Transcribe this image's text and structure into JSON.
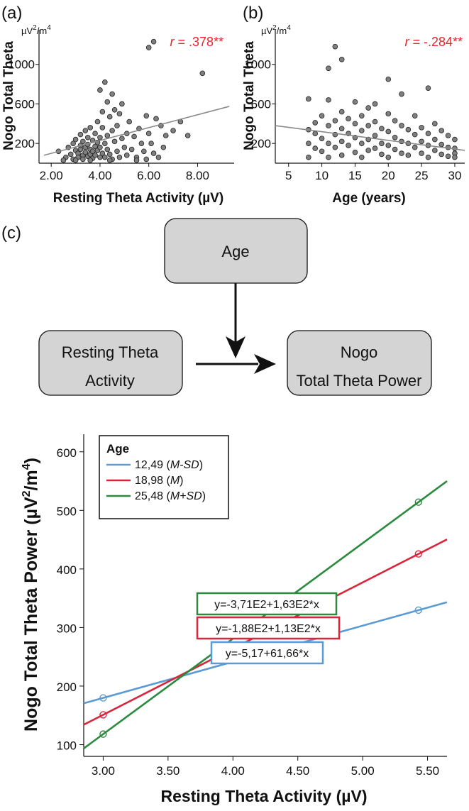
{
  "panels": {
    "a": "(a)",
    "b": "(b)",
    "c": "(c)"
  },
  "colors": {
    "m_minus_sd": "#5b9bd5",
    "m": "#d9263d",
    "m_plus_sd": "#2a8a3e",
    "r_text": "#e8262b",
    "dot": "#7f7f7f",
    "node_fill": "#d4d4d4"
  },
  "diagram": {
    "age": "Age",
    "resting_line1": "Resting Theta",
    "resting_line2": "Activity",
    "nogo_line1": "Nogo",
    "nogo_line2": "Total Theta Power"
  },
  "chart_data": [
    {
      "id": "a",
      "type": "scatter",
      "title": "",
      "xlabel": "Resting Theta Activity (µV)",
      "ylabel": "Nogo Total Theta",
      "y_unit_base": "µV",
      "y_unit_sup1": "2",
      "y_unit_mid": "/m",
      "y_unit_sup2": "4",
      "annotation_prefix": "r",
      "annotation_value": " = .378**",
      "xlim": [
        1.5,
        9.5
      ],
      "ylim": [
        0,
        1350
      ],
      "xticks": [
        2,
        4,
        6,
        8
      ],
      "xtick_labels": [
        "2.00",
        "4.00",
        "6.00",
        "8.00"
      ],
      "yticks": [
        200,
        600,
        1000
      ],
      "fit_line": {
        "x": [
          1.7,
          9.3
        ],
        "y": [
          80,
          575
        ]
      },
      "points": [
        [
          2.3,
          120
        ],
        [
          2.6,
          60
        ],
        [
          2.7,
          160
        ],
        [
          2.8,
          90
        ],
        [
          2.9,
          200
        ],
        [
          2.9,
          40
        ],
        [
          3.0,
          130
        ],
        [
          3.0,
          240
        ],
        [
          3.1,
          100
        ],
        [
          3.1,
          60
        ],
        [
          3.2,
          180
        ],
        [
          3.2,
          290
        ],
        [
          3.2,
          140
        ],
        [
          3.3,
          80
        ],
        [
          3.3,
          220
        ],
        [
          3.3,
          40
        ],
        [
          3.4,
          160
        ],
        [
          3.4,
          330
        ],
        [
          3.4,
          110
        ],
        [
          3.5,
          260
        ],
        [
          3.5,
          70
        ],
        [
          3.5,
          190
        ],
        [
          3.6,
          140
        ],
        [
          3.6,
          360
        ],
        [
          3.6,
          90
        ],
        [
          3.7,
          230
        ],
        [
          3.7,
          120
        ],
        [
          3.7,
          50
        ],
        [
          3.8,
          300
        ],
        [
          3.8,
          170
        ],
        [
          3.8,
          80
        ],
        [
          3.9,
          420
        ],
        [
          3.9,
          210
        ],
        [
          3.9,
          130
        ],
        [
          4.0,
          740
        ],
        [
          4.0,
          60
        ],
        [
          4.0,
          260
        ],
        [
          4.0,
          160
        ],
        [
          4.1,
          520
        ],
        [
          4.1,
          100
        ],
        [
          4.1,
          360
        ],
        [
          4.2,
          820
        ],
        [
          4.2,
          200
        ],
        [
          4.2,
          60
        ],
        [
          4.3,
          620
        ],
        [
          4.3,
          280
        ],
        [
          4.3,
          140
        ],
        [
          4.4,
          470
        ],
        [
          4.4,
          90
        ],
        [
          4.5,
          700
        ],
        [
          4.5,
          330
        ],
        [
          4.5,
          40
        ],
        [
          4.6,
          540
        ],
        [
          4.6,
          220
        ],
        [
          4.7,
          380
        ],
        [
          4.7,
          120
        ],
        [
          4.8,
          500
        ],
        [
          4.8,
          60
        ],
        [
          4.9,
          250
        ],
        [
          4.9,
          600
        ],
        [
          5.0,
          160
        ],
        [
          5.1,
          300
        ],
        [
          5.1,
          80
        ],
        [
          5.2,
          420
        ],
        [
          5.3,
          140
        ],
        [
          5.4,
          270
        ],
        [
          5.5,
          60
        ],
        [
          5.6,
          350
        ],
        [
          5.7,
          200
        ],
        [
          5.8,
          120
        ],
        [
          5.9,
          480
        ],
        [
          5.9,
          40
        ],
        [
          6.0,
          300
        ],
        [
          6.0,
          1170
        ],
        [
          6.1,
          200
        ],
        [
          6.2,
          1230
        ],
        [
          6.2,
          100
        ],
        [
          6.3,
          450
        ],
        [
          6.4,
          60
        ],
        [
          6.5,
          380
        ],
        [
          6.6,
          160
        ],
        [
          6.7,
          280
        ],
        [
          7.0,
          330
        ],
        [
          7.3,
          420
        ],
        [
          7.6,
          280
        ],
        [
          8.2,
          910
        ],
        [
          2.5,
          30
        ],
        [
          3.0,
          30
        ],
        [
          3.6,
          30
        ],
        [
          4.4,
          30
        ],
        [
          5.5,
          30
        ]
      ]
    },
    {
      "id": "b",
      "type": "scatter",
      "title": "",
      "xlabel": "Age (years)",
      "ylabel": "Nogo Total Theta",
      "y_unit_base": "µV",
      "y_unit_sup1": "2",
      "y_unit_mid": "/m",
      "y_unit_sup2": "4",
      "annotation_prefix": "r",
      "annotation_value": " = -.284**",
      "xlim": [
        3,
        31.5
      ],
      "ylim": [
        0,
        1350
      ],
      "xticks": [
        5,
        10,
        15,
        20,
        25,
        30
      ],
      "xtick_labels": [
        "5",
        "10",
        "15",
        "20",
        "25",
        "30"
      ],
      "yticks": [
        200,
        600,
        1000
      ],
      "fit_line": {
        "x": [
          3,
          31.5
        ],
        "y": [
          380,
          130
        ]
      },
      "points": [
        [
          8,
          650
        ],
        [
          8,
          340
        ],
        [
          8,
          200
        ],
        [
          8,
          60
        ],
        [
          9,
          410
        ],
        [
          9,
          300
        ],
        [
          9,
          150
        ],
        [
          10,
          480
        ],
        [
          10,
          250
        ],
        [
          10,
          120
        ],
        [
          11,
          960
        ],
        [
          11,
          640
        ],
        [
          11,
          380
        ],
        [
          11,
          200
        ],
        [
          11,
          60
        ],
        [
          12,
          1180
        ],
        [
          12,
          430
        ],
        [
          12,
          290
        ],
        [
          12,
          160
        ],
        [
          13,
          1050
        ],
        [
          13,
          520
        ],
        [
          13,
          350
        ],
        [
          13,
          220
        ],
        [
          13,
          80
        ],
        [
          14,
          450
        ],
        [
          14,
          300
        ],
        [
          14,
          180
        ],
        [
          15,
          620
        ],
        [
          15,
          400
        ],
        [
          15,
          260
        ],
        [
          15,
          110
        ],
        [
          16,
          480
        ],
        [
          16,
          330
        ],
        [
          16,
          200
        ],
        [
          16,
          60
        ],
        [
          17,
          560
        ],
        [
          17,
          380
        ],
        [
          17,
          240
        ],
        [
          17,
          130
        ],
        [
          18,
          600
        ],
        [
          18,
          420
        ],
        [
          18,
          280
        ],
        [
          18,
          150
        ],
        [
          19,
          350
        ],
        [
          19,
          200
        ],
        [
          19,
          90
        ],
        [
          20,
          850
        ],
        [
          20,
          500
        ],
        [
          20,
          320
        ],
        [
          20,
          180
        ],
        [
          20,
          60
        ],
        [
          21,
          430
        ],
        [
          21,
          260
        ],
        [
          21,
          140
        ],
        [
          22,
          700
        ],
        [
          22,
          380
        ],
        [
          22,
          220
        ],
        [
          22,
          100
        ],
        [
          23,
          340
        ],
        [
          23,
          200
        ],
        [
          23,
          80
        ],
        [
          24,
          480
        ],
        [
          24,
          290
        ],
        [
          24,
          160
        ],
        [
          25,
          360
        ],
        [
          25,
          220
        ],
        [
          25,
          100
        ],
        [
          26,
          760
        ],
        [
          26,
          300
        ],
        [
          26,
          180
        ],
        [
          26,
          60
        ],
        [
          27,
          400
        ],
        [
          27,
          240
        ],
        [
          27,
          130
        ],
        [
          28,
          330
        ],
        [
          28,
          190
        ],
        [
          28,
          90
        ],
        [
          29,
          280
        ],
        [
          29,
          160
        ],
        [
          29,
          70
        ],
        [
          30,
          240
        ],
        [
          30,
          150
        ],
        [
          30,
          100
        ],
        [
          30,
          60
        ]
      ]
    },
    {
      "id": "c",
      "type": "line",
      "title": "",
      "xlabel": "Resting Theta Activity (µV)",
      "ylabel_main": "Nogo Total Theta Power (µV",
      "ylabel_sup1": "2",
      "ylabel_mid": "/m",
      "ylabel_sup2": "4",
      "ylabel_end": ")",
      "xlim": [
        2.85,
        5.65
      ],
      "ylim": [
        80,
        630
      ],
      "xticks": [
        3.0,
        3.5,
        4.0,
        4.5,
        5.0,
        5.5
      ],
      "xtick_labels": [
        "3.00",
        "3.50",
        "4.00",
        "4.50",
        "5.00",
        "5.50"
      ],
      "yticks": [
        100,
        200,
        300,
        400,
        500,
        600
      ],
      "ytick_labels": [
        "100",
        "200",
        "300",
        "400",
        "500",
        "600"
      ],
      "legend_title": "Age",
      "series": [
        {
          "name": "M-SD",
          "legend_value": "12,49 (",
          "legend_italic": "M-SD",
          "legend_close": ")",
          "intercept": -5.17,
          "slope": 61.66,
          "x_range": [
            2.85,
            5.65
          ],
          "marker_x": [
            3.0,
            5.43
          ],
          "equation": "y=-5,17+61,66*x"
        },
        {
          "name": "M",
          "legend_value": "18,98 (",
          "legend_italic": "M",
          "legend_close": ")",
          "intercept": -188,
          "slope": 113,
          "x_range": [
            2.85,
            5.65
          ],
          "marker_x": [
            3.0,
            5.43
          ],
          "equation": "y=-1,88E2+1,13E2*x"
        },
        {
          "name": "M+SD",
          "legend_value": "25,48 (",
          "legend_italic": "M+SD",
          "legend_close": ")",
          "intercept": -371,
          "slope": 163,
          "x_range": [
            2.85,
            5.65
          ],
          "marker_x": [
            3.0,
            5.43
          ],
          "equation": "y=-3,71E2+1,63E2*x"
        }
      ]
    }
  ]
}
